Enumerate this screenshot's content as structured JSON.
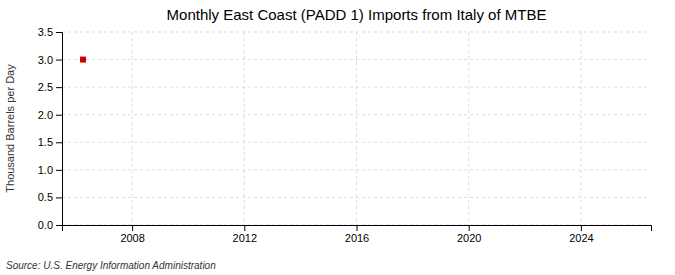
{
  "chart_data": {
    "type": "scatter",
    "title": "Monthly East Coast (PADD 1) Imports from Italy of MTBE",
    "ylabel": "Thousand Barrels per Day",
    "annotations": [
      "Source: U.S. Energy Information Administration"
    ],
    "x": [
      2006.25
    ],
    "values": [
      3.0
    ],
    "color": "#cc0000",
    "marker": "square",
    "xlim": [
      2005.5,
      2026.5
    ],
    "xticks": [
      2008,
      2012,
      2016,
      2020,
      2024
    ],
    "ylim": [
      0,
      3.5
    ],
    "yticks": [
      {
        "value": 0,
        "label": "0.0"
      },
      0.5,
      {
        "value": 1,
        "label": "1.0"
      },
      1.5,
      {
        "value": 2,
        "label": "2.0"
      },
      2.5,
      {
        "value": 3,
        "label": "3.0"
      },
      3.5
    ],
    "grid": true
  }
}
